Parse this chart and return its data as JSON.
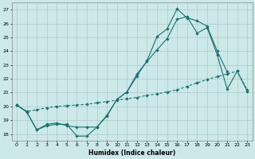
{
  "xlabel": "Humidex (Indice chaleur)",
  "xlim": [
    -0.5,
    23.5
  ],
  "ylim": [
    17.5,
    27.5
  ],
  "xticks": [
    0,
    1,
    2,
    3,
    4,
    5,
    6,
    7,
    8,
    9,
    10,
    11,
    12,
    13,
    14,
    15,
    16,
    17,
    18,
    19,
    20,
    21,
    22,
    23
  ],
  "yticks": [
    18,
    19,
    20,
    21,
    22,
    23,
    24,
    25,
    26,
    27
  ],
  "bg_color": "#cce8e8",
  "grid_color": "#aacccc",
  "line_color": "#1a7070",
  "line1_x": [
    0,
    1,
    2,
    3,
    4,
    5,
    6,
    7,
    8,
    9,
    10,
    11,
    12,
    13,
    14,
    15,
    16,
    17,
    18,
    19,
    20,
    21
  ],
  "line1_y": [
    20.1,
    19.6,
    18.3,
    18.6,
    18.7,
    18.7,
    17.85,
    17.85,
    18.5,
    19.3,
    20.5,
    21.05,
    22.2,
    23.3,
    25.05,
    25.6,
    27.05,
    26.4,
    26.2,
    25.8,
    24.0,
    22.5
  ],
  "line2_x": [
    0,
    1,
    2,
    3,
    4,
    5,
    6,
    7,
    8,
    9,
    10,
    11,
    12,
    13,
    14,
    15,
    16,
    17,
    18,
    19,
    20,
    21,
    22,
    23
  ],
  "line2_y": [
    20.1,
    19.6,
    18.3,
    18.7,
    18.8,
    18.6,
    18.5,
    18.5,
    18.5,
    19.35,
    20.5,
    21.05,
    22.35,
    23.25,
    24.1,
    24.9,
    26.3,
    26.5,
    25.3,
    25.7,
    23.75,
    21.25,
    22.55,
    21.1
  ],
  "line3_x": [
    0,
    1,
    2,
    3,
    4,
    5,
    6,
    7,
    8,
    9,
    10,
    11,
    12,
    13,
    14,
    15,
    16,
    17,
    18,
    19,
    20,
    21,
    22,
    23
  ],
  "line3_y": [
    20.1,
    19.65,
    19.75,
    19.9,
    20.0,
    20.05,
    20.1,
    20.15,
    20.25,
    20.35,
    20.45,
    20.55,
    20.65,
    20.8,
    20.9,
    21.05,
    21.2,
    21.45,
    21.7,
    21.95,
    22.15,
    22.35,
    22.55,
    21.2
  ]
}
